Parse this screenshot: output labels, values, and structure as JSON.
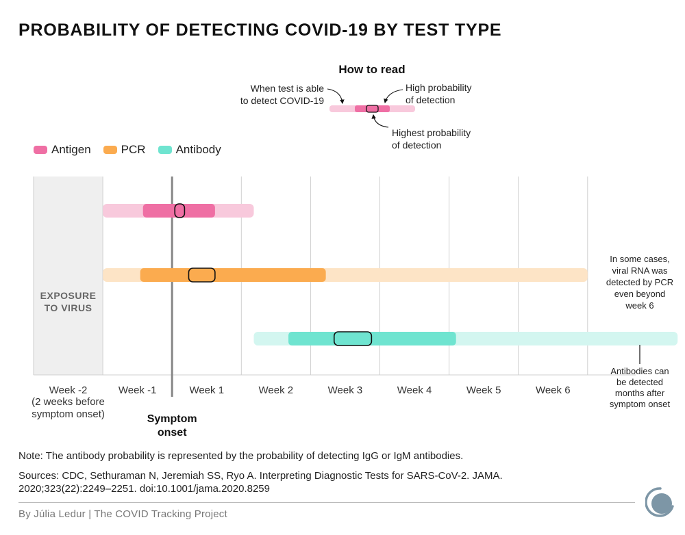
{
  "chart_data": {
    "type": "range",
    "title": "PROBABILITY OF DETECTING COVID-19 BY TEST TYPE",
    "x_unit": "weeks relative to symptom onset",
    "xlim": [
      -2,
      6.3
    ],
    "x_ticks": [
      {
        "value": -2,
        "label": "Week -2",
        "sublabel": "(2 weeks before\nsymptom onset)"
      },
      {
        "value": -1,
        "label": "Week -1"
      },
      {
        "value": 0,
        "label": "Week 1"
      },
      {
        "value": 1,
        "label": "Week 2"
      },
      {
        "value": 2,
        "label": "Week 3"
      },
      {
        "value": 3,
        "label": "Week 4"
      },
      {
        "value": 4,
        "label": "Week 5"
      },
      {
        "value": 5,
        "label": "Week 6"
      }
    ],
    "exposure_label": "EXPOSURE\nTO VIRUS",
    "exposure_range": [
      -2,
      -1
    ],
    "symptom_onset": {
      "x": 0,
      "label": "Symptom\nonset"
    },
    "legend_position": "top-left",
    "series": [
      {
        "name": "Antigen",
        "color": "#ef6fa4",
        "light_color": "#f8c9dc",
        "detectable": [
          -1,
          1.18
        ],
        "high": [
          -0.42,
          0.62
        ],
        "highest": [
          0.04,
          0.18
        ]
      },
      {
        "name": "PCR",
        "color": "#fbab4f",
        "light_color": "#fde4c6",
        "detectable": [
          -1,
          6.0
        ],
        "high": [
          -0.46,
          2.22
        ],
        "highest": [
          0.24,
          0.62
        ]
      },
      {
        "name": "Antibody",
        "color": "#6fe4d0",
        "light_color": "#d3f6f0",
        "detectable": [
          1.18,
          7.3
        ],
        "high": [
          1.68,
          4.1
        ],
        "highest": [
          2.34,
          2.88
        ]
      }
    ],
    "annotations": [
      {
        "text": "In some cases,\nviral RNA was\ndetected by PCR\neven beyond\nweek 6"
      },
      {
        "text": "Antibodies can\nbe detected\nmonths after\nsymptom onset"
      }
    ],
    "how_to_read": {
      "title": "How to read",
      "left_label": "When test is able\nto detect COVID-19",
      "right_top_label": "High probability\nof detection",
      "right_bottom_label": "Highest probability\nof detection"
    }
  },
  "note": "Note: The antibody probability is represented by the probability of detecting IgG or IgM antibodies.",
  "sources": "Sources: CDC, Sethuraman N, Jeremiah SS, Ryo A. Interpreting Diagnostic Tests for SARS-CoV-2. JAMA. 2020;323(22):2249–2251. doi:10.1001/jama.2020.8259",
  "credit": "By Júlia Ledur | The COVID Tracking Project",
  "logo_icon": "covid-tracking-project-logo"
}
